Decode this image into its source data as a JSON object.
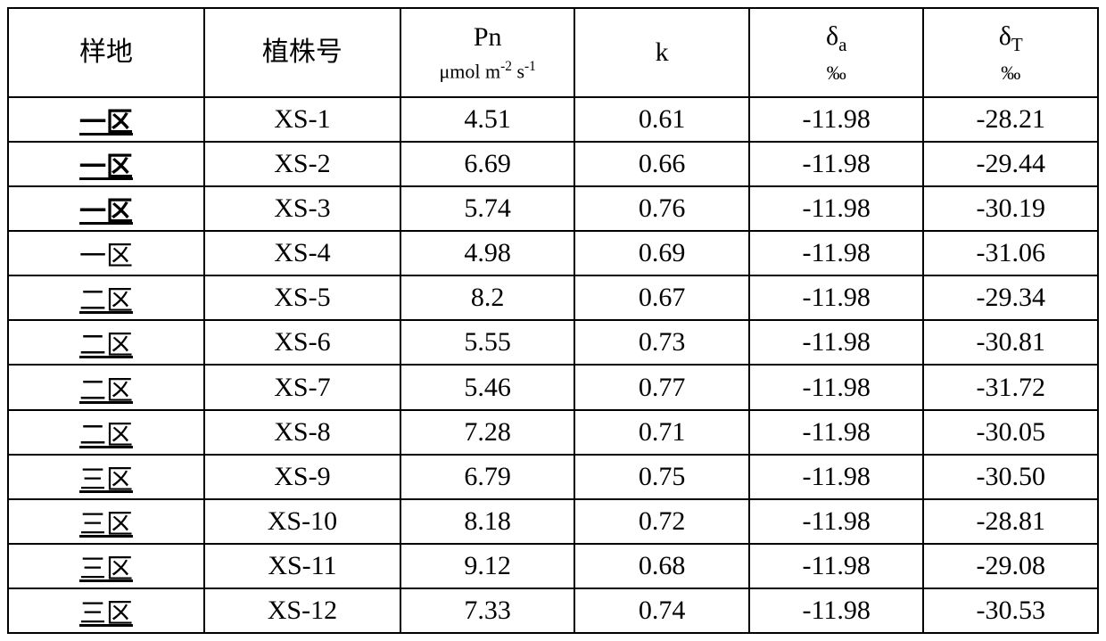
{
  "table": {
    "type": "table",
    "border_color": "#000000",
    "background_color": "#ffffff",
    "text_color": "#000000",
    "header_fontsize": 30,
    "unit_fontsize": 22,
    "body_fontsize": 30,
    "columns": [
      {
        "key": "plot",
        "label_main": "样地",
        "label_unit": "",
        "width_pct": 18
      },
      {
        "key": "plant",
        "label_main": "植株号",
        "label_unit": "",
        "width_pct": 18
      },
      {
        "key": "pn",
        "label_main": "Pn",
        "label_unit": "μmol m⁻² s⁻¹",
        "width_pct": 16
      },
      {
        "key": "k",
        "label_main": "k",
        "label_unit": "",
        "width_pct": 16
      },
      {
        "key": "da",
        "label_main": "δₐ",
        "label_unit": "‰",
        "width_pct": 16
      },
      {
        "key": "dt",
        "label_main": "δ_T",
        "label_unit": "‰",
        "width_pct": 16
      }
    ],
    "rows": [
      {
        "plot": "一区",
        "plot_style": "bold-underline",
        "plant": "XS-1",
        "pn": "4.51",
        "k": "0.61",
        "da": "-11.98",
        "dt": "-28.21"
      },
      {
        "plot": "一区",
        "plot_style": "bold-underline",
        "plant": "XS-2",
        "pn": "6.69",
        "k": "0.66",
        "da": "-11.98",
        "dt": "-29.44"
      },
      {
        "plot": "一区",
        "plot_style": "bold-underline",
        "plant": "XS-3",
        "pn": "5.74",
        "k": "0.76",
        "da": "-11.98",
        "dt": "-30.19"
      },
      {
        "plot": "一区",
        "plot_style": "",
        "plant": "XS-4",
        "pn": "4.98",
        "k": "0.69",
        "da": "-11.98",
        "dt": "-31.06"
      },
      {
        "plot": "二区",
        "plot_style": "underline",
        "plant": "XS-5",
        "pn": "8.2",
        "k": "0.67",
        "da": "-11.98",
        "dt": "-29.34"
      },
      {
        "plot": "二区",
        "plot_style": "underline",
        "plant": "XS-6",
        "pn": "5.55",
        "k": "0.73",
        "da": "-11.98",
        "dt": "-30.81"
      },
      {
        "plot": "二区",
        "plot_style": "underline",
        "plant": "XS-7",
        "pn": "5.46",
        "k": "0.77",
        "da": "-11.98",
        "dt": "-31.72"
      },
      {
        "plot": "二区",
        "plot_style": "underline",
        "plant": "XS-8",
        "pn": "7.28",
        "k": "0.71",
        "da": "-11.98",
        "dt": "-30.05"
      },
      {
        "plot": "三区",
        "plot_style": "underline",
        "plant": "XS-9",
        "pn": "6.79",
        "k": "0.75",
        "da": "-11.98",
        "dt": "-30.50"
      },
      {
        "plot": "三区",
        "plot_style": "underline",
        "plant": "XS-10",
        "pn": "8.18",
        "k": "0.72",
        "da": "-11.98",
        "dt": "-28.81"
      },
      {
        "plot": "三区",
        "plot_style": "underline",
        "plant": "XS-11",
        "pn": "9.12",
        "k": "0.68",
        "da": "-11.98",
        "dt": "-29.08"
      },
      {
        "plot": "三区",
        "plot_style": "underline",
        "plant": "XS-12",
        "pn": "7.33",
        "k": "0.74",
        "da": "-11.98",
        "dt": "-30.53"
      }
    ]
  }
}
